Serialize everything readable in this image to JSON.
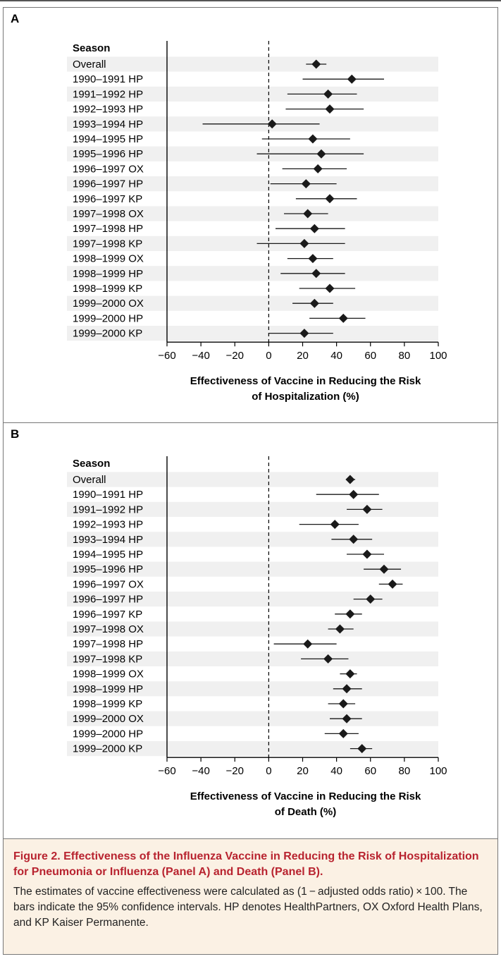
{
  "chart_data": [
    {
      "type": "forest",
      "panel": "A",
      "row_header": "Season",
      "rows": [
        {
          "label": "Overall",
          "estimate": 28,
          "low": 22,
          "high": 34
        },
        {
          "label": "1990–1991 HP",
          "estimate": 49,
          "low": 20,
          "high": 68
        },
        {
          "label": "1991–1992 HP",
          "estimate": 35,
          "low": 11,
          "high": 52
        },
        {
          "label": "1992–1993 HP",
          "estimate": 36,
          "low": 10,
          "high": 56
        },
        {
          "label": "1993–1994 HP",
          "estimate": 2,
          "low": -39,
          "high": 30
        },
        {
          "label": "1994–1995 HP",
          "estimate": 26,
          "low": -4,
          "high": 48
        },
        {
          "label": "1995–1996 HP",
          "estimate": 31,
          "low": -7,
          "high": 56
        },
        {
          "label": "1996–1997 OX",
          "estimate": 29,
          "low": 8,
          "high": 46
        },
        {
          "label": "1996–1997 HP",
          "estimate": 22,
          "low": 1,
          "high": 40
        },
        {
          "label": "1996–1997 KP",
          "estimate": 36,
          "low": 16,
          "high": 52
        },
        {
          "label": "1997–1998 OX",
          "estimate": 23,
          "low": 9,
          "high": 35
        },
        {
          "label": "1997–1998 HP",
          "estimate": 27,
          "low": 4,
          "high": 45
        },
        {
          "label": "1997–1998 KP",
          "estimate": 21,
          "low": -7,
          "high": 45
        },
        {
          "label": "1998–1999 OX",
          "estimate": 26,
          "low": 11,
          "high": 38
        },
        {
          "label": "1998–1999 HP",
          "estimate": 28,
          "low": 7,
          "high": 45
        },
        {
          "label": "1998–1999 KP",
          "estimate": 36,
          "low": 18,
          "high": 51
        },
        {
          "label": "1999–2000 OX",
          "estimate": 27,
          "low": 14,
          "high": 38
        },
        {
          "label": "1999–2000 HP",
          "estimate": 44,
          "low": 24,
          "high": 57
        },
        {
          "label": "1999–2000 KP",
          "estimate": 21,
          "low": 0,
          "high": 38
        }
      ],
      "xlim": [
        -60,
        100
      ],
      "xticks": [
        "−60",
        "−40",
        "−20",
        "0",
        "20",
        "40",
        "60",
        "80",
        "100"
      ],
      "xlabel_line1": "Effectiveness of Vaccine in Reducing the Risk",
      "xlabel_line2": "of Hospitalization (%)",
      "reference_line": 0,
      "alternating_row_shading": true
    },
    {
      "type": "forest",
      "panel": "B",
      "row_header": "Season",
      "rows": [
        {
          "label": "Overall",
          "estimate": 48,
          "low": 46,
          "high": 51
        },
        {
          "label": "1990–1991 HP",
          "estimate": 50,
          "low": 28,
          "high": 65
        },
        {
          "label": "1991–1992 HP",
          "estimate": 58,
          "low": 46,
          "high": 67
        },
        {
          "label": "1992–1993 HP",
          "estimate": 39,
          "low": 18,
          "high": 53
        },
        {
          "label": "1993–1994 HP",
          "estimate": 50,
          "low": 37,
          "high": 61
        },
        {
          "label": "1994–1995 HP",
          "estimate": 58,
          "low": 46,
          "high": 68
        },
        {
          "label": "1995–1996 HP",
          "estimate": 68,
          "low": 56,
          "high": 78
        },
        {
          "label": "1996–1997 OX",
          "estimate": 73,
          "low": 65,
          "high": 79
        },
        {
          "label": "1996–1997 HP",
          "estimate": 60,
          "low": 50,
          "high": 67
        },
        {
          "label": "1996–1997 KP",
          "estimate": 48,
          "low": 39,
          "high": 55
        },
        {
          "label": "1997–1998 OX",
          "estimate": 42,
          "low": 35,
          "high": 50
        },
        {
          "label": "1997–1998 HP",
          "estimate": 23,
          "low": 3,
          "high": 40
        },
        {
          "label": "1997–1998 KP",
          "estimate": 35,
          "low": 19,
          "high": 47
        },
        {
          "label": "1998–1999 OX",
          "estimate": 48,
          "low": 42,
          "high": 52
        },
        {
          "label": "1998–1999 HP",
          "estimate": 46,
          "low": 38,
          "high": 55
        },
        {
          "label": "1998–1999 KP",
          "estimate": 44,
          "low": 35,
          "high": 51
        },
        {
          "label": "1999–2000 OX",
          "estimate": 46,
          "low": 36,
          "high": 55
        },
        {
          "label": "1999–2000 HP",
          "estimate": 44,
          "low": 33,
          "high": 53
        },
        {
          "label": "1999–2000 KP",
          "estimate": 55,
          "low": 48,
          "high": 61
        }
      ],
      "xlim": [
        -60,
        100
      ],
      "xticks": [
        "−60",
        "−40",
        "−20",
        "0",
        "20",
        "40",
        "60",
        "80",
        "100"
      ],
      "xlabel_line1": "Effectiveness of Vaccine in Reducing the Risk",
      "xlabel_line2": "of Death (%)",
      "reference_line": 0,
      "alternating_row_shading": true
    }
  ],
  "colors": {
    "marker": "#1a1a1a",
    "row_shade": "#f0f0f0",
    "caption_bg": "#fbf1e4",
    "caption_title": "#b8232f"
  },
  "caption": {
    "figure_number": "Figure 2.",
    "title": " Effectiveness of the Influenza Vaccine in Reducing the Risk of Hospitalization for Pneumonia or Influenza (Panel A) and Death (Panel B).",
    "body": "The estimates of vaccine effectiveness were calculated as (1 − adjusted odds ratio) × 100. The bars indicate the 95% confidence intervals. HP denotes HealthPartners, OX Oxford Health Plans, and KP Kaiser Permanente."
  },
  "panels": {
    "a_letter": "A",
    "b_letter": "B"
  }
}
